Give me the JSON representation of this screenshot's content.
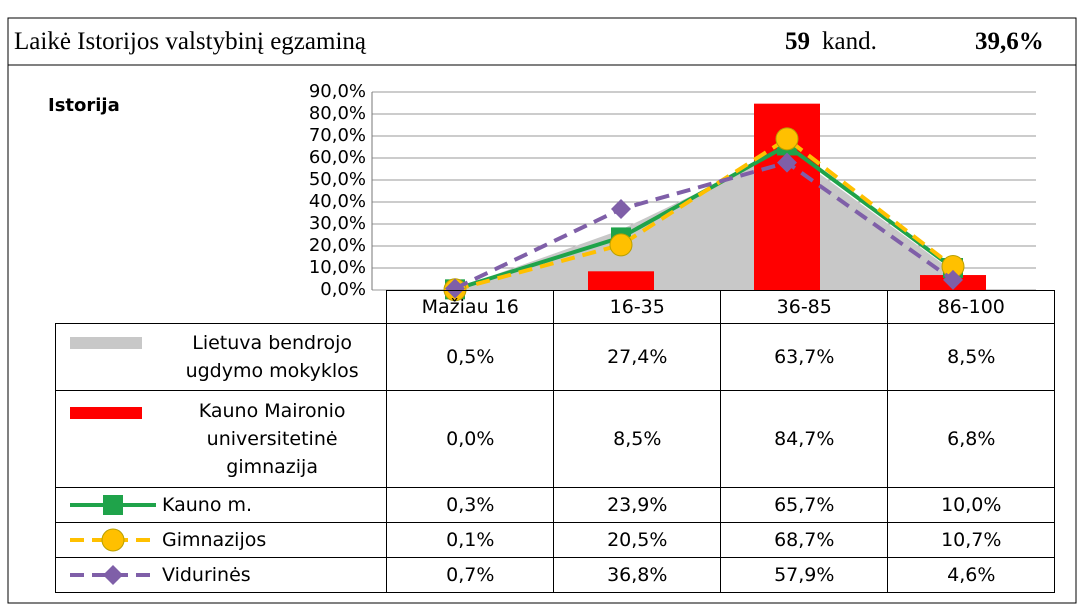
{
  "header": {
    "text": "Laikė Istorijos valstybinį egzaminą",
    "count": "59",
    "unit": "kand.",
    "percent": "39,6%"
  },
  "chart_data": {
    "type": "combo",
    "title": "Istorija",
    "categories": [
      "Mažiau 16",
      "16-35",
      "36-85",
      "86-100"
    ],
    "ylim": [
      0,
      90
    ],
    "yticks": [
      {
        "value": 0,
        "label": "0,0%"
      },
      {
        "value": 10,
        "label": "10,0%"
      },
      {
        "value": 20,
        "label": "20,0%"
      },
      {
        "value": 30,
        "label": "30,0%"
      },
      {
        "value": 40,
        "label": "40,0%"
      },
      {
        "value": 50,
        "label": "50,0%"
      },
      {
        "value": 60,
        "label": "60,0%"
      },
      {
        "value": 70,
        "label": "70,0%"
      },
      {
        "value": 80,
        "label": "80,0%"
      },
      {
        "value": 90,
        "label": "90,0%"
      }
    ],
    "grid": true,
    "series": [
      {
        "name": "Lietuva bendrojo ugdymo mokyklos",
        "kind": "area",
        "color": "#c8c8c8",
        "values": [
          0.5,
          27.4,
          63.7,
          8.5
        ],
        "value_labels": [
          "0,5%",
          "27,4%",
          "63,7%",
          "8,5%"
        ]
      },
      {
        "name": "Kauno Maironio universitetinė gimnazija",
        "kind": "bar",
        "color": "#ff0000",
        "values": [
          0.0,
          8.5,
          84.7,
          6.8
        ],
        "value_labels": [
          "0,0%",
          "8,5%",
          "84,7%",
          "6,8%"
        ]
      },
      {
        "name": "Kauno m.",
        "kind": "line",
        "marker": "square",
        "dashed": false,
        "color": "#1fa34a",
        "values": [
          0.3,
          23.9,
          65.7,
          10.0
        ],
        "value_labels": [
          "0,3%",
          "23,9%",
          "65,7%",
          "10,0%"
        ]
      },
      {
        "name": "Gimnazijos",
        "kind": "line",
        "marker": "circle",
        "dashed": true,
        "color": "#ffc000",
        "values": [
          0.1,
          20.5,
          68.7,
          10.7
        ],
        "value_labels": [
          "0,1%",
          "20,5%",
          "68,7%",
          "10,7%"
        ]
      },
      {
        "name": "Vidurinės",
        "kind": "line",
        "marker": "diamond",
        "dashed": true,
        "color": "#7f5fa8",
        "values": [
          0.7,
          36.8,
          57.9,
          4.6
        ],
        "value_labels": [
          "0,7%",
          "36,8%",
          "57,9%",
          "4,6%"
        ]
      }
    ]
  }
}
